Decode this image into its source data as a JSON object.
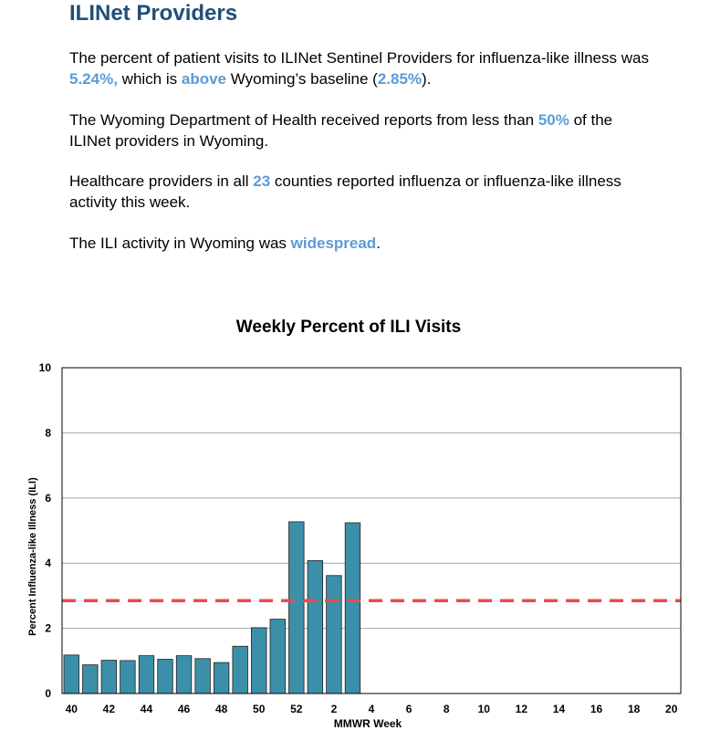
{
  "section": {
    "title": "ILINet Providers",
    "p1": {
      "t1": "The percent of patient visits to ILINet Sentinel Providers for influenza-like illness was ",
      "v1": "5.24%,",
      "t2": " which is ",
      "v2": "above",
      "t3": " Wyoming’s baseline (",
      "v3": "2.85%",
      "t4": ")."
    },
    "p2": {
      "t1": "The Wyoming Department of Health received reports from less than ",
      "v1": "50%",
      "t2": " of the ILINet providers in Wyoming."
    },
    "p3": {
      "t1": "Healthcare providers in all ",
      "v1": "23",
      "t2": " counties reported influenza or influenza-like illness activity this week."
    },
    "p4": {
      "t1": "The ILI activity in Wyoming was ",
      "v1": "widespread",
      "t2": "."
    },
    "highlight_color": "#5b9bd5"
  },
  "chart_data": {
    "type": "bar",
    "title": "Weekly Percent of ILI Visits",
    "xlabel": "MMWR Week",
    "ylabel": "Percent Influenza-like Illness (ILI)",
    "ylim": [
      0,
      10
    ],
    "yticks": [
      0,
      2,
      4,
      6,
      8,
      10
    ],
    "grid": true,
    "categories": [
      "40",
      "41",
      "42",
      "43",
      "44",
      "45",
      "46",
      "47",
      "48",
      "49",
      "50",
      "51",
      "52",
      "1",
      "2",
      "3",
      "4",
      "5",
      "6",
      "7",
      "8",
      "9",
      "10",
      "11",
      "12",
      "13",
      "14",
      "15",
      "16",
      "17",
      "18",
      "19",
      "20"
    ],
    "xtick_labels": [
      "40",
      "42",
      "44",
      "46",
      "48",
      "50",
      "52",
      "2",
      "4",
      "6",
      "8",
      "10",
      "12",
      "14",
      "16",
      "18",
      "20"
    ],
    "values": [
      1.18,
      0.88,
      1.02,
      1.01,
      1.16,
      1.05,
      1.16,
      1.07,
      0.95,
      1.45,
      2.02,
      2.28,
      5.27,
      4.08,
      3.62,
      5.24,
      null,
      null,
      null,
      null,
      null,
      null,
      null,
      null,
      null,
      null,
      null,
      null,
      null,
      null,
      null,
      null,
      null
    ],
    "baseline": 2.85,
    "bar_color": "#3c8fa9",
    "baseline_color": "#ed4a4a"
  }
}
